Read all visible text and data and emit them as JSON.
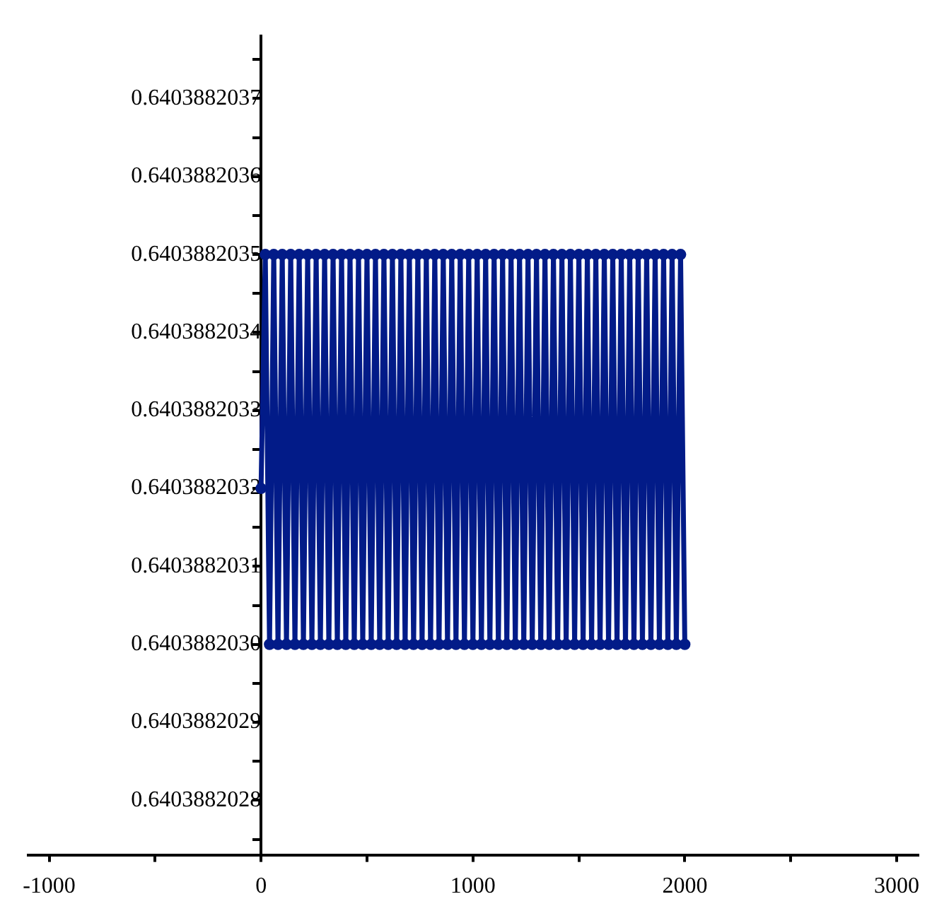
{
  "chart_data": {
    "type": "line",
    "marker": "circle",
    "grid": false,
    "legend": false,
    "xlim": [
      -1100,
      3100
    ],
    "xticks": [
      -1000,
      {
        "value": -500,
        "label": null
      },
      0,
      {
        "value": 500,
        "label": null
      },
      1000,
      {
        "value": 1500,
        "label": null
      },
      2000,
      {
        "value": 2500,
        "label": null
      },
      3000
    ],
    "ylim": [
      0.64038820273,
      0.64038820378
    ],
    "yticks": [
      {
        "value": 0.64038820275,
        "label": null
      },
      0.6403882028,
      {
        "value": 0.64038820285,
        "label": null
      },
      0.6403882029,
      {
        "value": 0.64038820295,
        "label": null
      },
      {
        "value": 0.640388203,
        "label": "0.6403882030"
      },
      {
        "value": 0.64038820305,
        "label": null
      },
      0.6403882031,
      {
        "value": 0.64038820315,
        "label": null
      },
      0.6403882032,
      {
        "value": 0.64038820325,
        "label": null
      },
      0.6403882033,
      {
        "value": 0.64038820335,
        "label": null
      },
      0.6403882034,
      {
        "value": 0.64038820345,
        "label": null
      },
      0.6403882035,
      {
        "value": 0.64038820355,
        "label": null
      },
      0.6403882036,
      {
        "value": 0.64038820365,
        "label": null
      },
      0.6403882037,
      {
        "value": 0.64038820375,
        "label": null
      }
    ],
    "series": [
      {
        "color": "#021b88",
        "x": [
          0,
          20,
          40,
          60,
          80,
          100,
          120,
          140,
          160,
          180,
          200,
          220,
          240,
          260,
          280,
          300,
          320,
          340,
          360,
          380,
          400,
          420,
          440,
          460,
          480,
          500,
          520,
          540,
          560,
          580,
          600,
          620,
          640,
          660,
          680,
          700,
          720,
          740,
          760,
          780,
          800,
          820,
          840,
          860,
          880,
          900,
          920,
          940,
          960,
          980,
          1000,
          1020,
          1040,
          1060,
          1080,
          1100,
          1120,
          1140,
          1160,
          1180,
          1200,
          1220,
          1240,
          1260,
          1280,
          1300,
          1320,
          1340,
          1360,
          1380,
          1400,
          1420,
          1440,
          1460,
          1480,
          1500,
          1520,
          1540,
          1560,
          1580,
          1600,
          1620,
          1640,
          1660,
          1680,
          1700,
          1720,
          1740,
          1760,
          1780,
          1800,
          1820,
          1840,
          1860,
          1880,
          1900,
          1920,
          1940,
          1960,
          1980,
          2000
        ],
        "values": [
          0.6403882032,
          0.6403882035,
          0.640388203,
          0.6403882035,
          0.640388203,
          0.6403882035,
          0.640388203,
          0.6403882035,
          0.640388203,
          0.6403882035,
          0.640388203,
          0.6403882035,
          0.640388203,
          0.6403882035,
          0.640388203,
          0.6403882035,
          0.640388203,
          0.6403882035,
          0.640388203,
          0.6403882035,
          0.640388203,
          0.6403882035,
          0.640388203,
          0.6403882035,
          0.640388203,
          0.6403882035,
          0.640388203,
          0.6403882035,
          0.640388203,
          0.6403882035,
          0.640388203,
          0.6403882035,
          0.640388203,
          0.6403882035,
          0.640388203,
          0.6403882035,
          0.640388203,
          0.6403882035,
          0.640388203,
          0.6403882035,
          0.640388203,
          0.6403882035,
          0.640388203,
          0.6403882035,
          0.640388203,
          0.6403882035,
          0.640388203,
          0.6403882035,
          0.640388203,
          0.6403882035,
          0.640388203,
          0.6403882035,
          0.640388203,
          0.6403882035,
          0.640388203,
          0.6403882035,
          0.640388203,
          0.6403882035,
          0.640388203,
          0.6403882035,
          0.640388203,
          0.6403882035,
          0.640388203,
          0.6403882035,
          0.640388203,
          0.6403882035,
          0.640388203,
          0.6403882035,
          0.640388203,
          0.6403882035,
          0.640388203,
          0.6403882035,
          0.640388203,
          0.6403882035,
          0.640388203,
          0.6403882035,
          0.640388203,
          0.6403882035,
          0.640388203,
          0.6403882035,
          0.640388203,
          0.6403882035,
          0.640388203,
          0.6403882035,
          0.640388203,
          0.6403882035,
          0.640388203,
          0.6403882035,
          0.640388203,
          0.6403882035,
          0.640388203,
          0.6403882035,
          0.640388203,
          0.6403882035,
          0.640388203,
          0.6403882035,
          0.640388203,
          0.6403882035,
          0.640388203,
          0.6403882035,
          0.640388203
        ]
      }
    ]
  }
}
